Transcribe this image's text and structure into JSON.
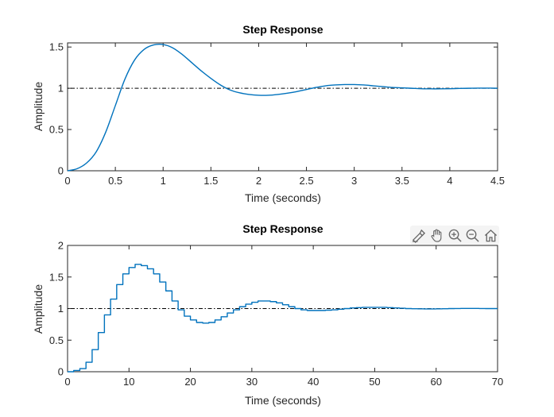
{
  "chart_data": [
    {
      "type": "line",
      "title": "Step Response",
      "xlabel": "Time (seconds)",
      "ylabel": "Amplitude",
      "xlim": [
        0,
        4.5
      ],
      "ylim": [
        0,
        1.55
      ],
      "xticks": [
        0,
        0.5,
        1,
        1.5,
        2,
        2.5,
        3,
        3.5,
        4,
        4.5
      ],
      "yticks": [
        0,
        0.5,
        1,
        1.5
      ],
      "xtick_labels": [
        "0",
        "0.5",
        "1",
        "1.5",
        "2",
        "2.5",
        "3",
        "3.5",
        "4",
        "4.5"
      ],
      "ytick_labels": [
        "0",
        "0.5",
        "1",
        "1.5"
      ],
      "reference_line": 1,
      "grid": false,
      "style": "continuous",
      "series": [
        {
          "x": [
            0,
            0.1,
            0.2,
            0.3,
            0.4,
            0.5,
            0.6,
            0.7,
            0.8,
            0.9,
            1.0,
            1.1,
            1.2,
            1.3,
            1.4,
            1.5,
            1.6,
            1.7,
            1.8,
            1.9,
            2.0,
            2.1,
            2.2,
            2.3,
            2.4,
            2.5,
            2.6,
            2.7,
            2.8,
            2.9,
            3.0,
            3.1,
            3.2,
            3.3,
            3.4,
            3.5,
            3.6,
            3.7,
            3.8,
            3.9,
            4.0,
            4.1,
            4.2,
            4.3,
            4.4,
            4.5
          ],
          "y": [
            0,
            0.025,
            0.095,
            0.23,
            0.47,
            0.79,
            1.11,
            1.34,
            1.47,
            1.525,
            1.53,
            1.49,
            1.41,
            1.31,
            1.21,
            1.12,
            1.04,
            0.98,
            0.945,
            0.925,
            0.915,
            0.915,
            0.925,
            0.94,
            0.96,
            0.985,
            1.01,
            1.03,
            1.04,
            1.045,
            1.045,
            1.04,
            1.03,
            1.02,
            1.01,
            1.005,
            1.0,
            0.995,
            0.993,
            0.993,
            0.995,
            0.998,
            1.0,
            1.002,
            1.002,
            1.0
          ]
        }
      ]
    },
    {
      "type": "line",
      "title": "Step Response",
      "xlabel": "Time (seconds)",
      "ylabel": "Amplitude",
      "xlim": [
        0,
        70
      ],
      "ylim": [
        0,
        2
      ],
      "xticks": [
        0,
        10,
        20,
        30,
        40,
        50,
        60,
        70
      ],
      "yticks": [
        0,
        0.5,
        1,
        1.5,
        2
      ],
      "xtick_labels": [
        "0",
        "10",
        "20",
        "30",
        "40",
        "50",
        "60",
        "70"
      ],
      "ytick_labels": [
        "0",
        "0.5",
        "1",
        "1.5",
        "2"
      ],
      "reference_line": 1,
      "grid": false,
      "style": "stairs",
      "series": [
        {
          "x": [
            0,
            1,
            2,
            3,
            4,
            5,
            6,
            7,
            8,
            9,
            10,
            11,
            12,
            13,
            14,
            15,
            16,
            17,
            18,
            19,
            20,
            21,
            22,
            23,
            24,
            25,
            26,
            27,
            28,
            29,
            30,
            31,
            32,
            33,
            34,
            35,
            36,
            37,
            38,
            39,
            40,
            41,
            42,
            43,
            44,
            45,
            46,
            47,
            48,
            49,
            50,
            51,
            52,
            53,
            54,
            55,
            56,
            57,
            58,
            59,
            60,
            61,
            62,
            63,
            64,
            65,
            66,
            67,
            68,
            69,
            70
          ],
          "y": [
            0,
            0.02,
            0.05,
            0.15,
            0.35,
            0.62,
            0.9,
            1.15,
            1.38,
            1.55,
            1.65,
            1.7,
            1.68,
            1.63,
            1.55,
            1.42,
            1.28,
            1.12,
            0.98,
            0.88,
            0.82,
            0.78,
            0.77,
            0.78,
            0.82,
            0.87,
            0.93,
            0.98,
            1.03,
            1.07,
            1.1,
            1.12,
            1.12,
            1.11,
            1.09,
            1.06,
            1.03,
            1.0,
            0.98,
            0.97,
            0.97,
            0.97,
            0.975,
            0.98,
            0.99,
            1.0,
            1.01,
            1.015,
            1.02,
            1.02,
            1.02,
            1.02,
            1.015,
            1.01,
            1.005,
            1.0,
            0.998,
            0.996,
            0.995,
            0.995,
            0.996,
            0.998,
            1.0,
            1.001,
            1.002,
            1.002,
            1.002,
            1.001,
            1.0,
            1.0,
            1.0
          ]
        }
      ]
    }
  ],
  "colors": {
    "line": "#0072BD",
    "reference": "#000000",
    "axes": "#262626",
    "toolbar_bg": "#f4f4f4",
    "toolbar_icon": "#666666"
  },
  "toolbar": {
    "icons": [
      "brush-icon",
      "pan-hand-icon",
      "zoom-in-icon",
      "zoom-out-icon",
      "home-icon"
    ]
  }
}
